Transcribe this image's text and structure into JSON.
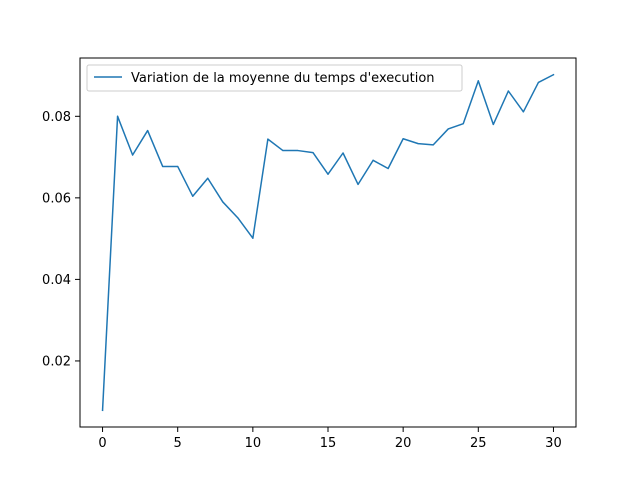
{
  "chart_data": {
    "type": "line",
    "x": [
      0,
      1,
      2,
      3,
      4,
      5,
      6,
      7,
      8,
      9,
      10,
      11,
      12,
      13,
      14,
      15,
      16,
      17,
      18,
      19,
      20,
      21,
      22,
      23,
      24,
      25,
      26,
      27,
      28,
      29,
      30
    ],
    "series": [
      {
        "name": "Variation de la moyenne du temps d'execution",
        "color": "#1f77b4",
        "values": [
          0.0079,
          0.08,
          0.0705,
          0.0765,
          0.0677,
          0.0677,
          0.0604,
          0.0648,
          0.059,
          0.0551,
          0.0501,
          0.0744,
          0.0716,
          0.0716,
          0.0711,
          0.0658,
          0.071,
          0.0633,
          0.0692,
          0.0672,
          0.0745,
          0.0733,
          0.073,
          0.0769,
          0.0782,
          0.0887,
          0.078,
          0.0862,
          0.0811,
          0.0883,
          0.0902
        ]
      }
    ],
    "xlim": [
      -1.5,
      31.5
    ],
    "ylim": [
      0.0038,
      0.0943
    ],
    "xticks": [
      0,
      5,
      10,
      15,
      20,
      25,
      30
    ],
    "xtick_labels": [
      "0",
      "5",
      "10",
      "15",
      "20",
      "25",
      "30"
    ],
    "yticks": [
      0.02,
      0.04,
      0.06,
      0.08
    ],
    "ytick_labels": [
      "0.02",
      "0.04",
      "0.06",
      "0.08"
    ],
    "grid": false,
    "legend_position": "top-left"
  }
}
